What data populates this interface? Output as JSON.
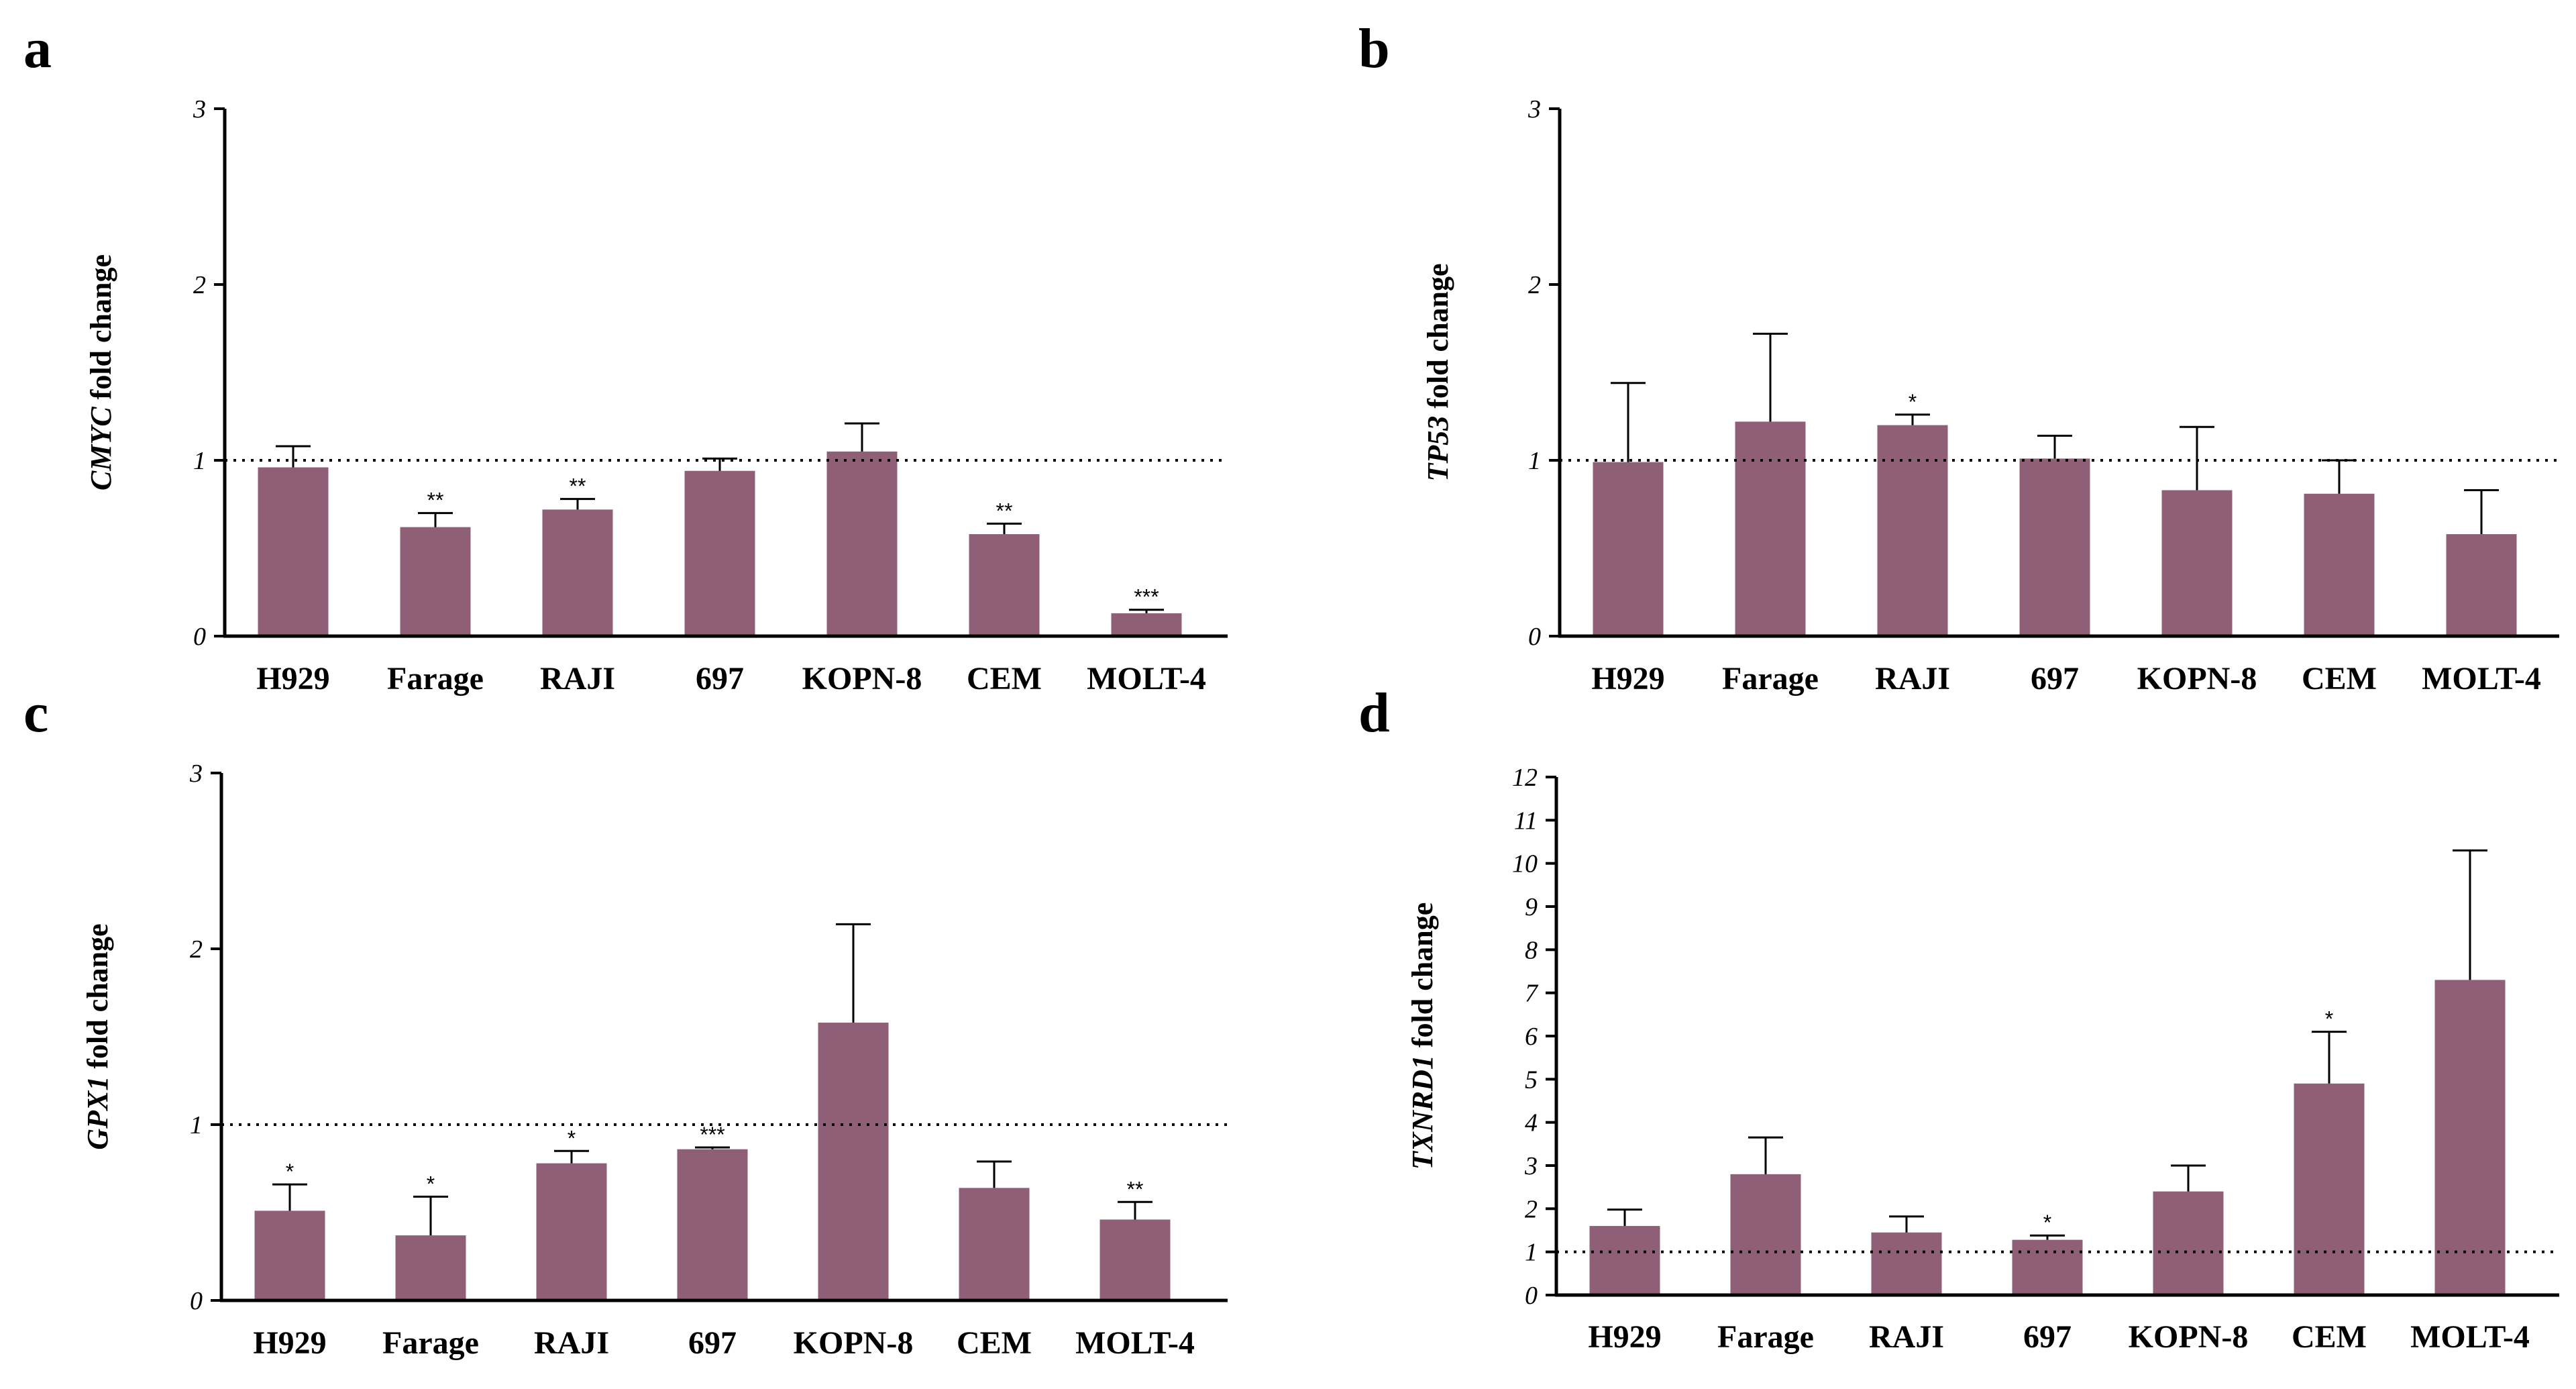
{
  "colors": {
    "bar": "#8f5f78",
    "axis": "#000000",
    "reference_line": "#000000"
  },
  "chart_data": [
    {
      "type": "bar",
      "panel": "a",
      "ylabel_gene": "CMYC",
      "ylabel_rest": " fold change",
      "categories": [
        "H929",
        "Farage",
        "RAJI",
        "697",
        "KOPN-8",
        "CEM",
        "MOLT-4"
      ],
      "values": [
        0.96,
        0.62,
        0.72,
        0.94,
        1.05,
        0.58,
        0.13
      ],
      "error": [
        0.12,
        0.08,
        0.06,
        0.07,
        0.16,
        0.06,
        0.02
      ],
      "significance": [
        "",
        "**",
        "**",
        "",
        "",
        "**",
        "***"
      ],
      "ylim": [
        0,
        3
      ],
      "yticks": [
        0,
        1,
        2,
        3
      ],
      "reference_line": 1
    },
    {
      "type": "bar",
      "panel": "b",
      "ylabel_gene": "TP53",
      "ylabel_rest": " fold change",
      "categories": [
        "H929",
        "Farage",
        "RAJI",
        "697",
        "KOPN-8",
        "CEM",
        "MOLT-4"
      ],
      "values": [
        0.99,
        1.22,
        1.2,
        1.01,
        0.83,
        0.81,
        0.58
      ],
      "error": [
        0.45,
        0.5,
        0.06,
        0.13,
        0.36,
        0.19,
        0.25
      ],
      "significance": [
        "",
        "",
        "*",
        "",
        "",
        "",
        ""
      ],
      "ylim": [
        0,
        3
      ],
      "yticks": [
        0,
        1,
        2,
        3
      ],
      "reference_line": 1
    },
    {
      "type": "bar",
      "panel": "c",
      "ylabel_gene": "GPX1",
      "ylabel_rest": " fold change",
      "categories": [
        "H929",
        "Farage",
        "RAJI",
        "697",
        "KOPN-8",
        "CEM",
        "MOLT-4"
      ],
      "values": [
        0.51,
        0.37,
        0.78,
        0.86,
        1.58,
        0.64,
        0.46
      ],
      "error": [
        0.15,
        0.22,
        0.07,
        0.01,
        0.56,
        0.15,
        0.1
      ],
      "significance": [
        "*",
        "*",
        "*",
        "***",
        "",
        "",
        "**"
      ],
      "ylim": [
        0,
        3
      ],
      "yticks": [
        0,
        1,
        2,
        3
      ],
      "reference_line": 1
    },
    {
      "type": "bar",
      "panel": "d",
      "ylabel_gene": "TXNRD1",
      "ylabel_rest": " fold change",
      "categories": [
        "H929",
        "Farage",
        "RAJI",
        "697",
        "KOPN-8",
        "CEM",
        "MOLT-4"
      ],
      "values": [
        1.6,
        2.8,
        1.45,
        1.28,
        2.4,
        4.9,
        7.3
      ],
      "error": [
        0.38,
        0.85,
        0.37,
        0.1,
        0.6,
        1.2,
        3.0
      ],
      "significance": [
        "",
        "",
        "",
        "*",
        "",
        "*",
        ""
      ],
      "ylim": [
        0,
        12
      ],
      "yticks": [
        0,
        1,
        2,
        3,
        4,
        5,
        6,
        7,
        8,
        9,
        10,
        11,
        12
      ],
      "reference_line": 1
    }
  ]
}
